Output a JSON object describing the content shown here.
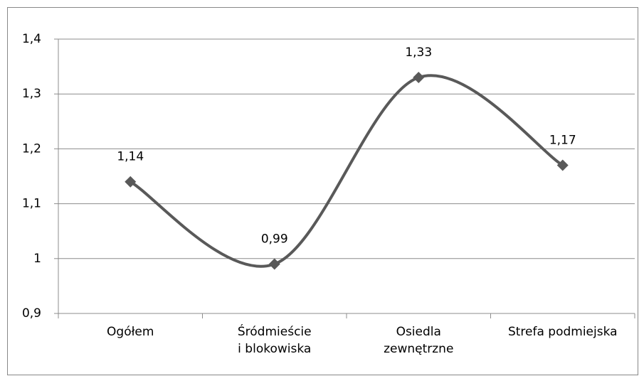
{
  "chart_data": {
    "type": "line",
    "categories": [
      "Ogółem",
      "Śródmieście\ni blokowiska",
      "Osiedla\nzewnętrzne",
      "Strefa podmiejska"
    ],
    "values": [
      1.14,
      0.99,
      1.33,
      1.17
    ],
    "value_labels": [
      "1,14",
      "0,99",
      "1,33",
      "1,17"
    ],
    "color": "#595959",
    "smooth": true,
    "ylim": [
      0.9,
      1.4
    ],
    "yticks": [
      {
        "value": 0.9,
        "label": "0,9"
      },
      1,
      {
        "value": 1.1,
        "label": "1,1"
      },
      {
        "value": 1.2,
        "label": "1,2"
      },
      {
        "value": 1.3,
        "label": "1,3"
      },
      {
        "value": 1.4,
        "label": "1,4"
      }
    ],
    "grid": true
  }
}
